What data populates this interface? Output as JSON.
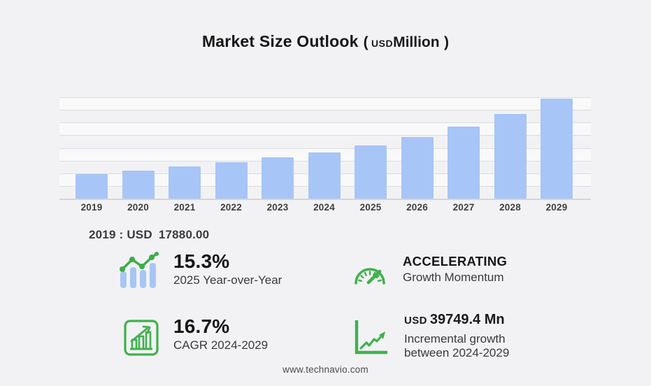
{
  "title": {
    "main": "Market Size Outlook",
    "open_paren": "(",
    "currency": "USD",
    "unit": "Million",
    "close_paren": ")"
  },
  "chart_data": {
    "type": "bar",
    "title": "Market Size Outlook (USD Million)",
    "xlabel": "",
    "ylabel": "",
    "categories": [
      "2019",
      "2020",
      "2021",
      "2022",
      "2023",
      "2024",
      "2025",
      "2026",
      "2027",
      "2028",
      "2029"
    ],
    "values": [
      17880,
      20950,
      23700,
      26900,
      30300,
      34137,
      39360,
      45300,
      53400,
      62800,
      73887
    ],
    "ylim": [
      0,
      75000
    ],
    "grid": true,
    "gridline_count": 8,
    "bar_color": "#a7c5f6",
    "labeled_points": {
      "2019": 17880.0
    }
  },
  "baseline": {
    "label": "2019 : USD",
    "value": "17880.00"
  },
  "stats": {
    "yoy": {
      "icon": "bar-trend-icon",
      "value": "15.3%",
      "label": "2025 Year-over-Year"
    },
    "momentum": {
      "icon": "gauge-icon",
      "value": "ACCELERATING",
      "label": "Growth Momentum"
    },
    "cagr": {
      "icon": "chart-growth-icon",
      "value": "16.7%",
      "label": "CAGR 2024-2029"
    },
    "incremental": {
      "icon": "trend-arrow-icon",
      "currency": "USD",
      "amount": "39749.4 Mn",
      "label_line1": "Incremental growth",
      "label_line2": "between 2024-2029"
    }
  },
  "footer": {
    "url": "www.technavio.com"
  },
  "colors": {
    "background": "#f2f2f4",
    "bar": "#a7c5f6",
    "green": "#40b14e",
    "gridline": "#dcdde0",
    "icon_bar_blue": "#a8c6f4"
  }
}
